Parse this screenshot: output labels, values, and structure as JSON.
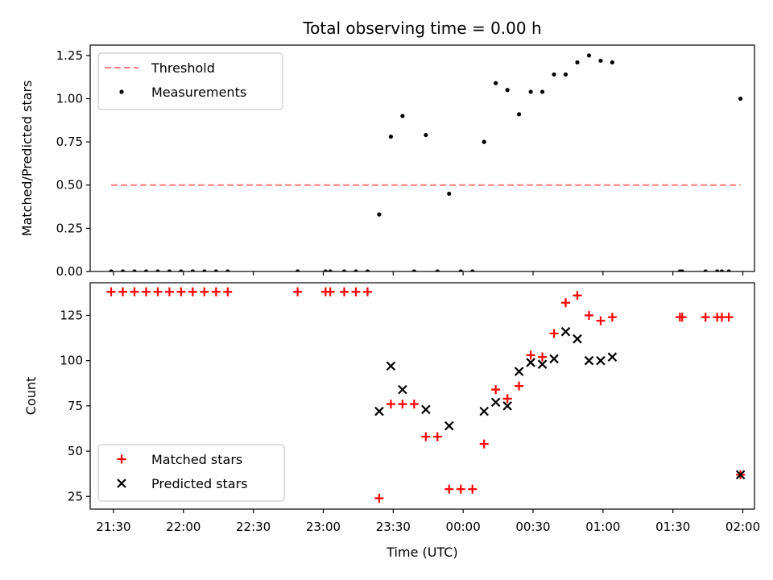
{
  "chart_data": [
    {
      "type": "scatter",
      "title": "Total observing time = 0.00 h",
      "ylabel": "Matched/Predicted stars",
      "xlabel": "",
      "xlim": [
        "21:20",
        "02:05"
      ],
      "ylim": [
        0,
        1.31
      ],
      "yticks": [
        0.0,
        0.25,
        0.5,
        0.75,
        1.0,
        1.25
      ],
      "ytick_labels": [
        "0.00",
        "0.25",
        "0.50",
        "0.75",
        "1.00",
        "1.25"
      ],
      "xticks": [
        "21:30",
        "22:00",
        "22:30",
        "23:00",
        "23:30",
        "00:00",
        "00:30",
        "01:00",
        "01:30",
        "02:00"
      ],
      "show_xtick_labels": false,
      "legend": {
        "placement": "upper-left",
        "entries": [
          "Threshold",
          "Measurements"
        ]
      },
      "series": [
        {
          "name": "Threshold",
          "style": "dashed-line",
          "color": "#ff7f7f",
          "points": [
            {
              "x": "21:29",
              "y": 0.5
            },
            {
              "x": "01:59",
              "y": 0.5
            }
          ]
        },
        {
          "name": "Measurements",
          "style": "dot",
          "color": "#000000",
          "points": [
            {
              "x": "21:29",
              "y": 0
            },
            {
              "x": "21:34",
              "y": 0
            },
            {
              "x": "21:39",
              "y": 0
            },
            {
              "x": "21:44",
              "y": 0
            },
            {
              "x": "21:49",
              "y": 0
            },
            {
              "x": "21:54",
              "y": 0
            },
            {
              "x": "21:59",
              "y": 0
            },
            {
              "x": "22:04",
              "y": 0
            },
            {
              "x": "22:09",
              "y": 0
            },
            {
              "x": "22:14",
              "y": 0
            },
            {
              "x": "22:19",
              "y": 0
            },
            {
              "x": "22:49",
              "y": 0
            },
            {
              "x": "23:01",
              "y": 0
            },
            {
              "x": "23:03",
              "y": 0
            },
            {
              "x": "23:09",
              "y": 0
            },
            {
              "x": "23:14",
              "y": 0
            },
            {
              "x": "23:19",
              "y": 0
            },
            {
              "x": "23:24",
              "y": 0.33
            },
            {
              "x": "23:29",
              "y": 0.78
            },
            {
              "x": "23:34",
              "y": 0.9
            },
            {
              "x": "23:39",
              "y": 0
            },
            {
              "x": "23:44",
              "y": 0.79
            },
            {
              "x": "23:49",
              "y": 0
            },
            {
              "x": "23:54",
              "y": 0.45
            },
            {
              "x": "23:59",
              "y": 0
            },
            {
              "x": "00:04",
              "y": 0
            },
            {
              "x": "00:09",
              "y": 0.75
            },
            {
              "x": "00:14",
              "y": 1.09
            },
            {
              "x": "00:19",
              "y": 1.05
            },
            {
              "x": "00:24",
              "y": 0.91
            },
            {
              "x": "00:29",
              "y": 1.04
            },
            {
              "x": "00:34",
              "y": 1.04
            },
            {
              "x": "00:39",
              "y": 1.14
            },
            {
              "x": "00:44",
              "y": 1.14
            },
            {
              "x": "00:49",
              "y": 1.21
            },
            {
              "x": "00:54",
              "y": 1.25
            },
            {
              "x": "00:59",
              "y": 1.22
            },
            {
              "x": "01:04",
              "y": 1.21
            },
            {
              "x": "01:33",
              "y": 0
            },
            {
              "x": "01:34",
              "y": 0
            },
            {
              "x": "01:44",
              "y": 0
            },
            {
              "x": "01:49",
              "y": 0
            },
            {
              "x": "01:51",
              "y": 0
            },
            {
              "x": "01:54",
              "y": 0
            },
            {
              "x": "01:59",
              "y": 1.0
            }
          ]
        }
      ]
    },
    {
      "type": "scatter",
      "title": "",
      "ylabel": "Count",
      "xlabel": "Time (UTC)",
      "xlim": [
        "21:20",
        "02:05"
      ],
      "ylim": [
        18,
        143
      ],
      "yticks": [
        25,
        50,
        75,
        100,
        125
      ],
      "ytick_labels": [
        "25",
        "50",
        "75",
        "100",
        "125"
      ],
      "xticks": [
        "21:30",
        "22:00",
        "22:30",
        "23:00",
        "23:30",
        "00:00",
        "00:30",
        "01:00",
        "01:30",
        "02:00"
      ],
      "show_xtick_labels": true,
      "legend": {
        "placement": "lower-left",
        "entries": [
          "Matched stars",
          "Predicted stars"
        ]
      },
      "series": [
        {
          "name": "Matched stars",
          "style": "plus",
          "color": "#ff0000",
          "points": [
            {
              "x": "21:29",
              "y": 138
            },
            {
              "x": "21:34",
              "y": 138
            },
            {
              "x": "21:39",
              "y": 138
            },
            {
              "x": "21:44",
              "y": 138
            },
            {
              "x": "21:49",
              "y": 138
            },
            {
              "x": "21:54",
              "y": 138
            },
            {
              "x": "21:59",
              "y": 138
            },
            {
              "x": "22:04",
              "y": 138
            },
            {
              "x": "22:09",
              "y": 138
            },
            {
              "x": "22:14",
              "y": 138
            },
            {
              "x": "22:19",
              "y": 138
            },
            {
              "x": "22:49",
              "y": 138
            },
            {
              "x": "23:01",
              "y": 138
            },
            {
              "x": "23:03",
              "y": 138
            },
            {
              "x": "23:09",
              "y": 138
            },
            {
              "x": "23:14",
              "y": 138
            },
            {
              "x": "23:19",
              "y": 138
            },
            {
              "x": "23:24",
              "y": 24
            },
            {
              "x": "23:29",
              "y": 76
            },
            {
              "x": "23:34",
              "y": 76
            },
            {
              "x": "23:39",
              "y": 76
            },
            {
              "x": "23:44",
              "y": 58
            },
            {
              "x": "23:49",
              "y": 58
            },
            {
              "x": "23:54",
              "y": 29
            },
            {
              "x": "23:59",
              "y": 29
            },
            {
              "x": "00:04",
              "y": 29
            },
            {
              "x": "00:09",
              "y": 54
            },
            {
              "x": "00:14",
              "y": 84
            },
            {
              "x": "00:19",
              "y": 79
            },
            {
              "x": "00:24",
              "y": 86
            },
            {
              "x": "00:29",
              "y": 103
            },
            {
              "x": "00:34",
              "y": 102
            },
            {
              "x": "00:39",
              "y": 115
            },
            {
              "x": "00:44",
              "y": 132
            },
            {
              "x": "00:49",
              "y": 136
            },
            {
              "x": "00:54",
              "y": 125
            },
            {
              "x": "00:59",
              "y": 122
            },
            {
              "x": "01:04",
              "y": 124
            },
            {
              "x": "01:33",
              "y": 124
            },
            {
              "x": "01:34",
              "y": 124
            },
            {
              "x": "01:44",
              "y": 124
            },
            {
              "x": "01:49",
              "y": 124
            },
            {
              "x": "01:51",
              "y": 124
            },
            {
              "x": "01:54",
              "y": 124
            },
            {
              "x": "01:59",
              "y": 37
            }
          ]
        },
        {
          "name": "Predicted stars",
          "style": "x",
          "color": "#000000",
          "points": [
            {
              "x": "23:24",
              "y": 72
            },
            {
              "x": "23:29",
              "y": 97
            },
            {
              "x": "23:34",
              "y": 84
            },
            {
              "x": "23:44",
              "y": 73
            },
            {
              "x": "23:54",
              "y": 64
            },
            {
              "x": "00:09",
              "y": 72
            },
            {
              "x": "00:14",
              "y": 77
            },
            {
              "x": "00:19",
              "y": 75
            },
            {
              "x": "00:24",
              "y": 94
            },
            {
              "x": "00:29",
              "y": 99
            },
            {
              "x": "00:34",
              "y": 98
            },
            {
              "x": "00:39",
              "y": 101
            },
            {
              "x": "00:44",
              "y": 116
            },
            {
              "x": "00:49",
              "y": 112
            },
            {
              "x": "00:54",
              "y": 100
            },
            {
              "x": "00:59",
              "y": 100
            },
            {
              "x": "01:04",
              "y": 102
            },
            {
              "x": "01:59",
              "y": 37
            }
          ]
        }
      ]
    }
  ]
}
